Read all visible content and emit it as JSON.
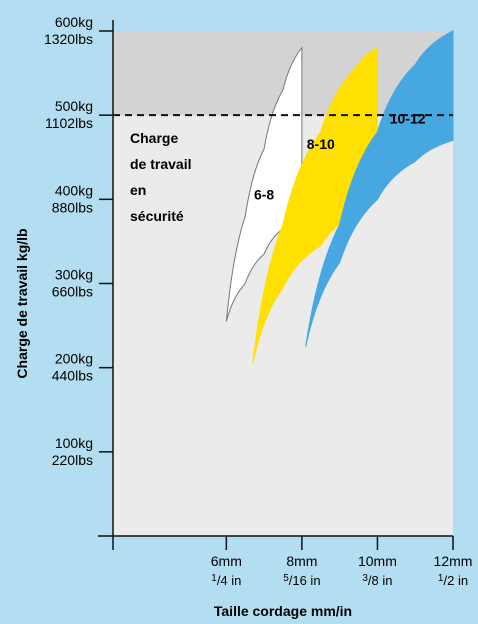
{
  "chart_data": {
    "type": "area",
    "title": "",
    "xlabel": "Taille cordage mm/in",
    "ylabel": "Charge de travail kg/lb",
    "xlim": [
      3,
      12
    ],
    "ylim": [
      0,
      600
    ],
    "x_ticks": [
      {
        "x": 6,
        "mm": "6mm",
        "in_num": "1",
        "in_den": "/4 in"
      },
      {
        "x": 8,
        "mm": "8mm",
        "in_num": "5",
        "in_den": "/16 in"
      },
      {
        "x": 10,
        "mm": "10mm",
        "in_num": "3",
        "in_den": "/8 in"
      },
      {
        "x": 12,
        "mm": "12mm",
        "in_num": "1",
        "in_den": "/2 in"
      }
    ],
    "y_ticks": [
      {
        "y": 100,
        "kg": "100kg",
        "lbs": "220lbs"
      },
      {
        "y": 200,
        "kg": "200kg",
        "lbs": "440lbs"
      },
      {
        "y": 300,
        "kg": "300kg",
        "lbs": "660lbs"
      },
      {
        "y": 400,
        "kg": "400kg",
        "lbs": "880lbs"
      },
      {
        "y": 500,
        "kg": "500kg",
        "lbs": "1102lbs"
      },
      {
        "y": 600,
        "kg": "600kg",
        "lbs": "1320lbs"
      }
    ],
    "safe_load_line": {
      "y": 500,
      "label": "Charge de travail en sécurité",
      "label_lines": [
        "Charge",
        "de travail",
        "en",
        "sécurité"
      ]
    },
    "series": [
      {
        "name": "6-8",
        "color": "#ffffff",
        "x_range": [
          6,
          8
        ],
        "upper": [
          [
            6,
            255
          ],
          [
            6.5,
            380
          ],
          [
            7,
            460
          ],
          [
            7.5,
            530
          ],
          [
            8,
            580
          ]
        ],
        "lower": [
          [
            6,
            255
          ],
          [
            6.5,
            300
          ],
          [
            7,
            335
          ],
          [
            7.5,
            365
          ],
          [
            8,
            400
          ]
        ]
      },
      {
        "name": "8-10",
        "color": "#ffe000",
        "x_range": [
          6.7,
          10
        ],
        "upper": [
          [
            6.7,
            205
          ],
          [
            7.5,
            370
          ],
          [
            8.5,
            480
          ],
          [
            9.5,
            560
          ],
          [
            10,
            580
          ]
        ],
        "lower": [
          [
            6.7,
            205
          ],
          [
            7.5,
            295
          ],
          [
            8.5,
            345
          ],
          [
            9.5,
            385
          ],
          [
            10,
            420
          ]
        ]
      },
      {
        "name": "10-12",
        "color": "#47a7e0",
        "x_range": [
          8.1,
          12
        ],
        "upper": [
          [
            8.1,
            225
          ],
          [
            9,
            370
          ],
          [
            10,
            480
          ],
          [
            11,
            560
          ],
          [
            12,
            600
          ]
        ],
        "lower": [
          [
            8.1,
            225
          ],
          [
            9,
            325
          ],
          [
            10,
            400
          ],
          [
            11,
            445
          ],
          [
            12,
            470
          ]
        ]
      }
    ],
    "grid": false,
    "legend": "none"
  }
}
